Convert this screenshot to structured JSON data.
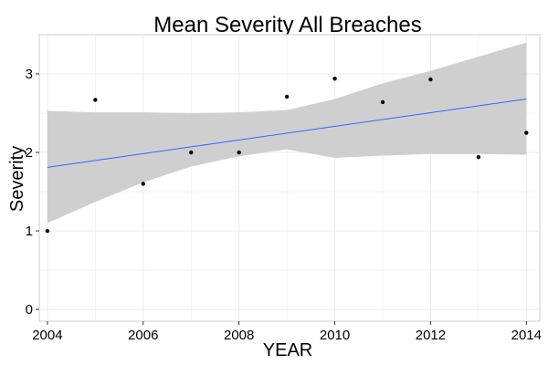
{
  "chart_data": {
    "type": "scatter",
    "title": "Mean Severity All Breaches",
    "xlabel": "YEAR",
    "ylabel": "Severity",
    "xlim": [
      2003.83,
      2014.28
    ],
    "ylim": [
      -0.15,
      3.5
    ],
    "x_ticks": [
      2004,
      2006,
      2008,
      2010,
      2012,
      2014
    ],
    "y_ticks": [
      0,
      1,
      2,
      3
    ],
    "grid": true,
    "points": [
      {
        "x": 2004,
        "y": 1.0
      },
      {
        "x": 2005,
        "y": 2.67
      },
      {
        "x": 2006,
        "y": 1.6
      },
      {
        "x": 2007,
        "y": 2.0
      },
      {
        "x": 2008,
        "y": 2.0
      },
      {
        "x": 2009,
        "y": 2.71
      },
      {
        "x": 2010,
        "y": 2.94
      },
      {
        "x": 2011,
        "y": 2.64
      },
      {
        "x": 2012,
        "y": 2.93
      },
      {
        "x": 2013,
        "y": 1.94
      },
      {
        "x": 2014,
        "y": 2.25
      }
    ],
    "trend": {
      "type": "linear",
      "x": [
        2004,
        2014
      ],
      "y": [
        1.81,
        2.68
      ],
      "color": "#3366ff"
    },
    "confidence_band": {
      "color": "#cccccc",
      "x": [
        2004,
        2005,
        2006,
        2007,
        2008,
        2009,
        2010,
        2011,
        2012,
        2013,
        2014
      ],
      "lower": [
        1.1,
        1.37,
        1.62,
        1.82,
        1.95,
        2.04,
        1.93,
        1.96,
        1.98,
        1.98,
        1.97
      ],
      "upper": [
        2.53,
        2.51,
        2.51,
        2.5,
        2.51,
        2.54,
        2.68,
        2.88,
        3.04,
        3.22,
        3.4
      ]
    },
    "colors": {
      "panel_background": "#ffffff",
      "panel_border": "#cccccc",
      "grid": "#ebebeb",
      "points": "#000000"
    }
  }
}
